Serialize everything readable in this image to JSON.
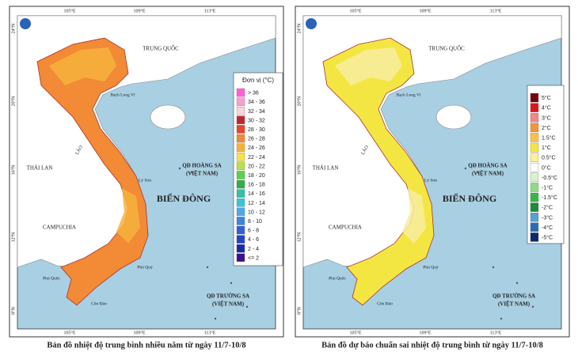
{
  "maps": [
    {
      "caption": "Bản đồ nhiệt độ trung bình nhiều năm từ ngày 11/7-10/8",
      "vietnam_color": "#f28a36",
      "vietnam_inner_color": "#f7b23c",
      "legend": {
        "title": "Đơn vị (°C)",
        "items": [
          {
            "label": "> 36",
            "color": "#ff5fd2"
          },
          {
            "label": "34 - 36",
            "color": "#f7a0d0"
          },
          {
            "label": "32 - 34",
            "color": "#fbd4dc"
          },
          {
            "label": "30 - 32",
            "color": "#c0282d"
          },
          {
            "label": "28 - 30",
            "color": "#e8452f"
          },
          {
            "label": "26 - 28",
            "color": "#f28a36"
          },
          {
            "label": "24 - 26",
            "color": "#f7b23c"
          },
          {
            "label": "22 - 24",
            "color": "#f5e34a"
          },
          {
            "label": "20 - 22",
            "color": "#b9e04a"
          },
          {
            "label": "18 - 20",
            "color": "#5ccf4e"
          },
          {
            "label": "16 - 18",
            "color": "#2fae49"
          },
          {
            "label": "14 - 16",
            "color": "#33c1a5"
          },
          {
            "label": "12 - 14",
            "color": "#37c5d8"
          },
          {
            "label": "10 - 12",
            "color": "#4fa9e8"
          },
          {
            "label": "8 - 10",
            "color": "#3d86e0"
          },
          {
            "label": "6 - 8",
            "color": "#2d62d8"
          },
          {
            "label": "4 - 6",
            "color": "#2244c8"
          },
          {
            "label": "2 - 4",
            "color": "#1a28b0"
          },
          {
            "label": "<= 2",
            "color": "#3a128c"
          }
        ]
      }
    },
    {
      "caption": "Bản đồ dự báo chuẩn sai  nhiệt độ trung bình từ ngày 11/7-10/8",
      "vietnam_color": "#f4e642",
      "vietnam_inner_color": "#f8eca0",
      "legend": {
        "items": [
          {
            "label": "5°C",
            "color": "#7a0010"
          },
          {
            "label": "4°C",
            "color": "#d7191c"
          },
          {
            "label": "3°C",
            "color": "#f0868a"
          },
          {
            "label": "2°C",
            "color": "#f4953a"
          },
          {
            "label": "1.5°C",
            "color": "#f8c24a"
          },
          {
            "label": "1°C",
            "color": "#f4e642"
          },
          {
            "label": "0.5°C",
            "color": "#f8f09a"
          },
          {
            "label": "0°C",
            "color": "#ffffff"
          },
          {
            "label": "-0.5°C",
            "color": "#d7f2cf"
          },
          {
            "label": "-1°C",
            "color": "#8fd98a"
          },
          {
            "label": "-1.5°C",
            "color": "#39b54a"
          },
          {
            "label": "-2°C",
            "color": "#1e8a3a"
          },
          {
            "label": "-3°C",
            "color": "#5a9fd4"
          },
          {
            "label": "-4°C",
            "color": "#2c6bb5"
          },
          {
            "label": "-5°C",
            "color": "#0d2a6b"
          }
        ]
      }
    }
  ],
  "sea_color": "#a9cfe2",
  "longitude_labels": [
    "105°E",
    "109°E",
    "113°E"
  ],
  "latitude_labels": [
    "24°N",
    "20°N",
    "16°N",
    "12°N",
    "8°N"
  ],
  "place_labels": [
    "TRUNG QUỐC",
    "Bạch Long Vĩ",
    "LÀO",
    "THÁI LAN",
    "CAMPUCHIA",
    "QĐ HOÀNG SA",
    "(VIỆT NAM)",
    "Lý Sơn",
    "BIỂN ĐÔNG",
    "Phú Quý",
    "Phú Quốc",
    "Côn Đảo",
    "QĐ TRƯỜNG SA",
    "(VIỆT NAM)"
  ]
}
